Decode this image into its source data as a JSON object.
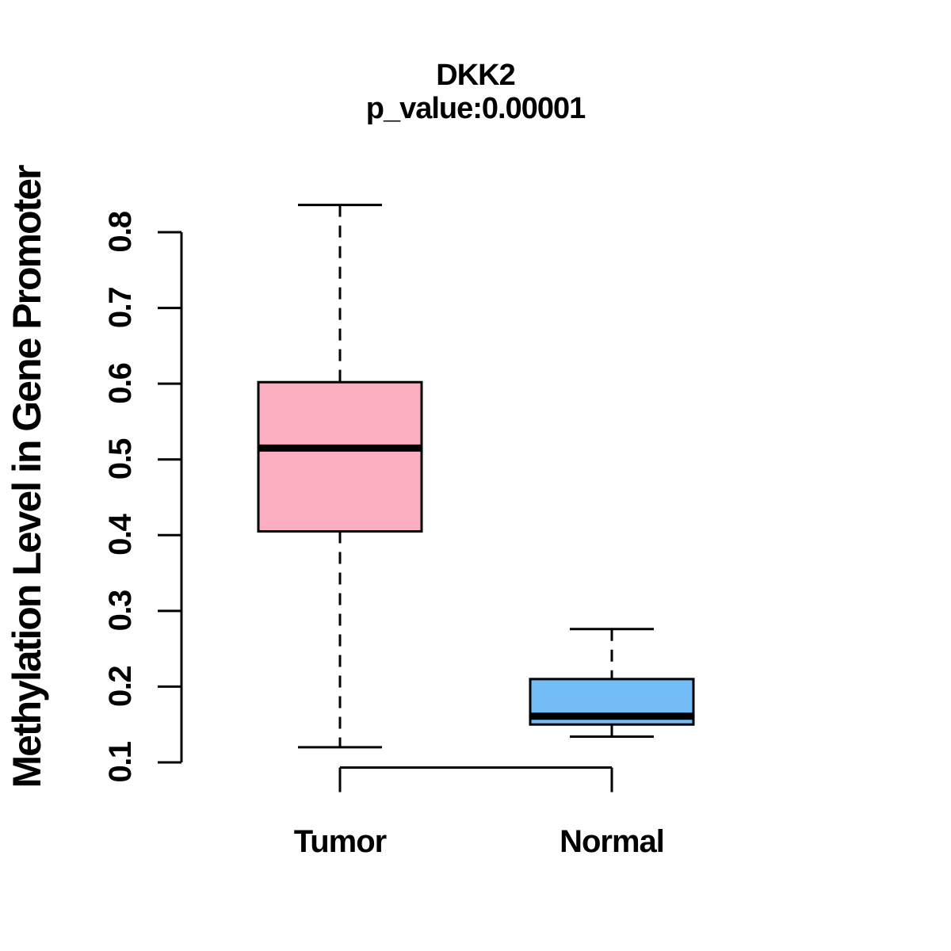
{
  "page": {
    "background_color": "#FFFFFF"
  },
  "chart_data": {
    "type": "boxplot",
    "title": "DKK2",
    "subtitle": "p_value:0.00001",
    "ylabel": "Methylation Level in Gene Promoter",
    "xlabel": "",
    "ylim": [
      0.1,
      0.8
    ],
    "yticks": [
      0.8,
      0.7,
      0.6,
      0.5,
      0.4,
      0.3,
      0.2,
      0.1
    ],
    "ytick_labels": [
      "0.8",
      "0.7",
      "0.6",
      "0.5",
      "0.4",
      "0.3",
      "0.2",
      "0.1"
    ],
    "grid": false,
    "legend": null,
    "whisker_line_style": "dashed",
    "stroke_color": "#000000",
    "categories": [
      "Tumor",
      "Normal"
    ],
    "series": [
      {
        "name": "Tumor",
        "fill_color": "#FCAEC1",
        "whisker_low": 0.12,
        "q1": 0.405,
        "median": 0.515,
        "q3": 0.602,
        "whisker_high": 0.836
      },
      {
        "name": "Normal",
        "fill_color": "#73BCF6",
        "whisker_low": 0.134,
        "q1": 0.15,
        "median": 0.161,
        "q3": 0.21,
        "whisker_high": 0.276
      }
    ]
  }
}
